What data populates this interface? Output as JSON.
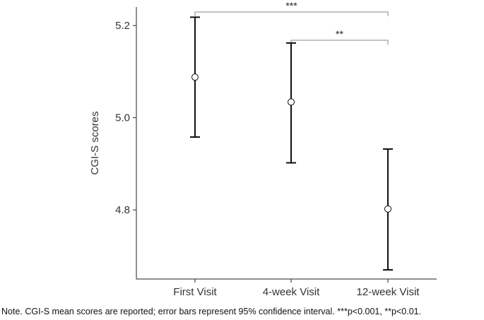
{
  "chart_data": {
    "type": "scatter",
    "categories": [
      "First Visit",
      "4-week Visit",
      "12-week Visit"
    ],
    "mean": [
      5.088,
      5.034,
      4.802
    ],
    "ci_lower": [
      4.958,
      4.902,
      4.67
    ],
    "ci_upper": [
      5.218,
      5.162,
      4.932
    ],
    "ylabel": "CGI-S scores",
    "xlabel": "",
    "ylim": [
      4.65,
      5.24
    ],
    "yticks": [
      4.8,
      5.0,
      5.2
    ],
    "ytick_labels": [
      "4.8",
      "5.0",
      "5.2"
    ],
    "grid": false,
    "significance": [
      {
        "from": 0,
        "to": 2,
        "label": "***"
      },
      {
        "from": 1,
        "to": 2,
        "label": "**"
      }
    ]
  },
  "note": "Note. CGI-S mean scores are reported; error bars represent 95% confidence interval. ***p<0.001, **p<0.01."
}
